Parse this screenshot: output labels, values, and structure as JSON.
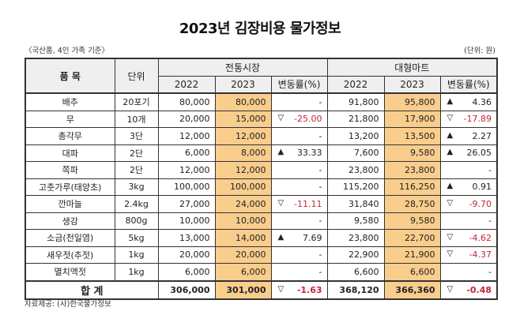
{
  "title": "2023년 김장비용 물가정보",
  "subtitle": "〈국산품, 4인 가족 기준〉",
  "unit_note": "(단위: 원)",
  "headers": {
    "item": "품  목",
    "unit": "단위",
    "traditional": "전통시장",
    "mart": "대형마트",
    "y2022": "2022",
    "y2023": "2023",
    "change": "변동률(%)"
  },
  "rows": [
    {
      "item": "배추",
      "unit": "20포기",
      "t22": "80,000",
      "t23": "80,000",
      "tchg": "-",
      "tdir": "",
      "m22": "91,800",
      "m23": "95,800",
      "mchg": "4.36",
      "mdir": "up"
    },
    {
      "item": "무",
      "unit": "10개",
      "t22": "20,000",
      "t23": "15,000",
      "tchg": "-25.00",
      "tdir": "down",
      "m22": "21,800",
      "m23": "17,900",
      "mchg": "-17.89",
      "mdir": "down"
    },
    {
      "item": "총각무",
      "unit": "3단",
      "t22": "12,000",
      "t23": "12,000",
      "tchg": "-",
      "tdir": "",
      "m22": "13,200",
      "m23": "13,500",
      "mchg": "2.27",
      "mdir": "up"
    },
    {
      "item": "대파",
      "unit": "2단",
      "t22": "6,000",
      "t23": "8,000",
      "tchg": "33.33",
      "tdir": "up",
      "m22": "7,600",
      "m23": "9,580",
      "mchg": "26.05",
      "mdir": "up"
    },
    {
      "item": "쪽파",
      "unit": "2단",
      "t22": "12,000",
      "t23": "12,000",
      "tchg": "-",
      "tdir": "",
      "m22": "23,800",
      "m23": "23,800",
      "mchg": "-",
      "mdir": ""
    },
    {
      "item": "고춧가루(태양초)",
      "unit": "3kg",
      "t22": "100,000",
      "t23": "100,000",
      "tchg": "-",
      "tdir": "",
      "m22": "115,200",
      "m23": "116,250",
      "mchg": "0.91",
      "mdir": "up"
    },
    {
      "item": "깐마늘",
      "unit": "2.4kg",
      "t22": "27,000",
      "t23": "24,000",
      "tchg": "-11.11",
      "tdir": "down",
      "m22": "31,840",
      "m23": "28,750",
      "mchg": "-9.70",
      "mdir": "down"
    },
    {
      "item": "생강",
      "unit": "800g",
      "t22": "10,000",
      "t23": "10,000",
      "tchg": "-",
      "tdir": "",
      "m22": "9,580",
      "m23": "9,580",
      "mchg": "-",
      "mdir": ""
    },
    {
      "item": "소금(천일염)",
      "unit": "5kg",
      "t22": "13,000",
      "t23": "14,000",
      "tchg": "7.69",
      "tdir": "up",
      "m22": "23,800",
      "m23": "22,700",
      "mchg": "-4.62",
      "mdir": "down"
    },
    {
      "item": "새우젓(추젓)",
      "unit": "1kg",
      "t22": "20,000",
      "t23": "20,000",
      "tchg": "-",
      "tdir": "",
      "m22": "22,900",
      "m23": "21,900",
      "mchg": "-4.37",
      "mdir": "down"
    },
    {
      "item": "멸치액젓",
      "unit": "1kg",
      "t22": "6,000",
      "t23": "6,000",
      "tchg": "-",
      "tdir": "",
      "m22": "6,600",
      "m23": "6,600",
      "mchg": "-",
      "mdir": ""
    }
  ],
  "total": {
    "label": "합  계",
    "t22": "306,000",
    "t23": "301,000",
    "tchg": "-1.63",
    "tdir": "down",
    "m22": "368,120",
    "m23": "366,360",
    "mchg": "-0.48",
    "mdir": "down"
  },
  "source": "자료제공: (사)한국물가정보",
  "colors": {
    "highlight": "#f9cd8c",
    "negative": "#c0283a",
    "header_bg": "#efefef"
  }
}
